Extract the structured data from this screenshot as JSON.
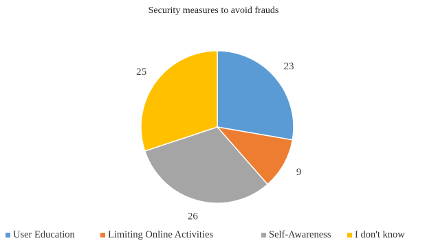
{
  "chart_data": {
    "type": "pie",
    "title": "Security measures to avoid frauds",
    "categories": [
      "User Education",
      "Limiting Online Activities",
      "Self-Awareness",
      "I don't know"
    ],
    "values": [
      23,
      9,
      26,
      25
    ],
    "colors": [
      "#5b9bd5",
      "#ed7d31",
      "#a5a5a5",
      "#ffc000"
    ],
    "data_labels": [
      "23",
      "9",
      "26",
      "25"
    ],
    "start_angle_deg": 0,
    "direction": "clockwise",
    "legend_position": "bottom"
  }
}
